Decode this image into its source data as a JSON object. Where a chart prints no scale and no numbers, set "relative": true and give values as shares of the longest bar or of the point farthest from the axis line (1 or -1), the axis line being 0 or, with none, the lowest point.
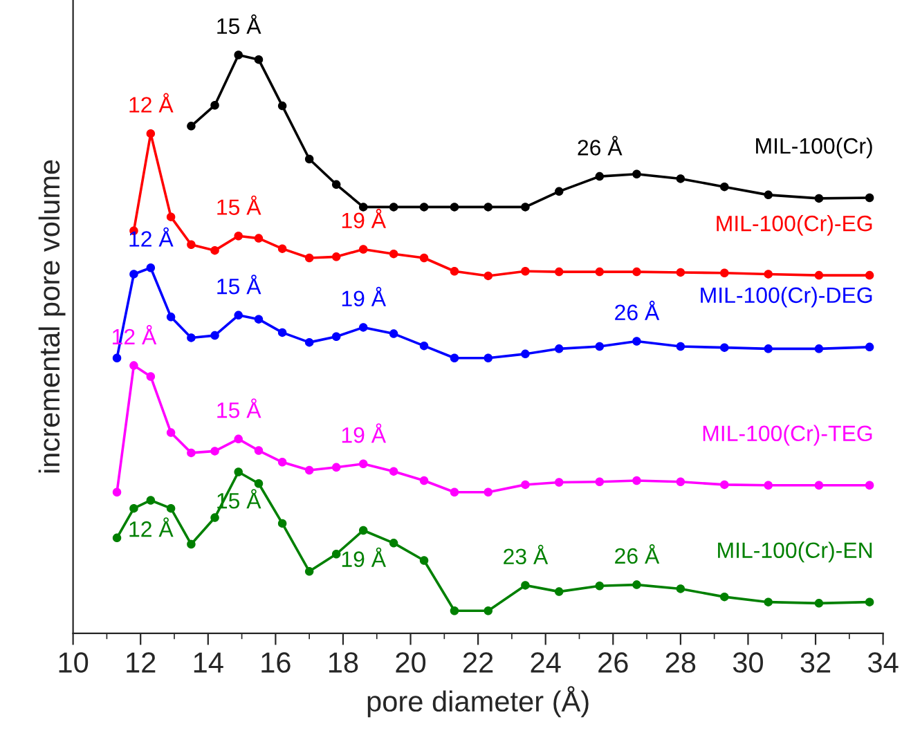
{
  "chart_data": {
    "type": "line",
    "relative": true,
    "xlabel": "pore diameter (Å)",
    "ylabel": "incremental pore volume",
    "xlim": [
      10,
      34
    ],
    "xticks": [
      10,
      12,
      14,
      16,
      18,
      20,
      22,
      24,
      26,
      28,
      30,
      32,
      34
    ],
    "grid": false,
    "legend": false,
    "marker": "circle",
    "line_style": "solid",
    "tick_labels": "x",
    "series": [
      {
        "name": "MIL-100(Cr)",
        "color": "#000000",
        "x": [
          13.5,
          14.2,
          14.9,
          15.5,
          16.2,
          17.0,
          17.8,
          18.6,
          19.5,
          20.4,
          21.3,
          22.3,
          23.4,
          24.4,
          25.6,
          26.7,
          28.0,
          29.3,
          30.6,
          32.1,
          33.6
        ],
        "values": [
          0.877,
          0.913,
          1,
          0.992,
          0.912,
          0.82,
          0.776,
          0.737,
          0.737,
          0.737,
          0.737,
          0.737,
          0.737,
          0.764,
          0.79,
          0.794,
          0.786,
          0.772,
          0.758,
          0.752,
          0.753
        ]
      },
      {
        "name": "MIL-100(Cr)-EG",
        "color": "#ff0000",
        "x": [
          11.8,
          12.3,
          12.9,
          13.5,
          14.2,
          14.9,
          15.5,
          16.2,
          17.0,
          17.8,
          18.6,
          19.5,
          20.4,
          21.3,
          22.3,
          23.4,
          24.4,
          25.6,
          26.7,
          28.0,
          29.3,
          30.6,
          32.1,
          33.6
        ],
        "values": [
          0.696,
          0.864,
          0.72,
          0.672,
          0.662,
          0.687,
          0.683,
          0.665,
          0.649,
          0.651,
          0.664,
          0.656,
          0.649,
          0.626,
          0.618,
          0.626,
          0.625,
          0.625,
          0.625,
          0.624,
          0.623,
          0.621,
          0.619,
          0.619
        ]
      },
      {
        "name": "MIL-100(Cr)-DEG",
        "color": "#0000ff",
        "x": [
          11.3,
          11.8,
          12.3,
          12.9,
          13.5,
          14.2,
          14.9,
          15.5,
          16.2,
          17.0,
          17.8,
          18.6,
          19.5,
          20.4,
          21.3,
          22.3,
          23.4,
          24.4,
          25.6,
          26.7,
          28.0,
          29.3,
          30.6,
          32.1,
          33.6
        ],
        "values": [
          0.476,
          0.621,
          0.632,
          0.547,
          0.511,
          0.515,
          0.55,
          0.543,
          0.52,
          0.503,
          0.513,
          0.529,
          0.518,
          0.497,
          0.476,
          0.476,
          0.483,
          0.492,
          0.496,
          0.505,
          0.496,
          0.494,
          0.492,
          0.492,
          0.495
        ]
      },
      {
        "name": "MIL-100(Cr)-TEG",
        "color": "#ff00ff",
        "x": [
          11.3,
          11.8,
          12.3,
          12.9,
          13.5,
          14.2,
          14.9,
          15.5,
          16.2,
          17.0,
          17.8,
          18.6,
          19.5,
          20.4,
          21.3,
          22.3,
          23.4,
          24.4,
          25.6,
          26.7,
          28.0,
          29.3,
          30.6,
          32.1,
          33.6
        ],
        "values": [
          0.244,
          0.463,
          0.444,
          0.347,
          0.312,
          0.315,
          0.336,
          0.316,
          0.296,
          0.282,
          0.287,
          0.293,
          0.28,
          0.264,
          0.244,
          0.244,
          0.257,
          0.261,
          0.262,
          0.264,
          0.262,
          0.257,
          0.256,
          0.256,
          0.256
        ]
      },
      {
        "name": "MIL-100(Cr)-EN",
        "color": "#008000",
        "x": [
          11.3,
          11.8,
          12.3,
          12.9,
          13.5,
          14.2,
          14.9,
          15.5,
          16.2,
          17.0,
          17.8,
          18.6,
          19.5,
          20.4,
          21.3,
          22.3,
          23.4,
          24.4,
          25.6,
          26.7,
          28.0,
          29.3,
          30.6,
          32.1,
          33.6
        ],
        "values": [
          0.165,
          0.216,
          0.23,
          0.216,
          0.154,
          0.2,
          0.279,
          0.259,
          0.19,
          0.107,
          0.137,
          0.178,
          0.156,
          0.126,
          0.039,
          0.039,
          0.083,
          0.072,
          0.082,
          0.084,
          0.077,
          0.063,
          0.054,
          0.052,
          0.054
        ]
      }
    ],
    "annotations": [
      {
        "text": "15 Å",
        "x": 14.9,
        "y": 1
      },
      {
        "text": "26 Å",
        "x": 25.6,
        "y": 0.79
      },
      {
        "text": "12 Å",
        "x": 12.3,
        "y": 0.864
      },
      {
        "text": "15 Å",
        "x": 14.9,
        "y": 0.687
      },
      {
        "text": "19 Å",
        "x": 18.6,
        "y": 0.664
      },
      {
        "text": "12 Å",
        "x": 12.3,
        "y": 0.632
      },
      {
        "text": "15 Å",
        "x": 14.9,
        "y": 0.55
      },
      {
        "text": "19 Å",
        "x": 18.6,
        "y": 0.529
      },
      {
        "text": "26 Å",
        "x": 26.7,
        "y": 0.505
      },
      {
        "text": "12 Å",
        "x": 11.8,
        "y": 0.463
      },
      {
        "text": "15 Å",
        "x": 14.9,
        "y": 0.336
      },
      {
        "text": "19 Å",
        "x": 18.6,
        "y": 0.293
      },
      {
        "text": "12 Å",
        "x": 12.3,
        "y": 0.23
      },
      {
        "text": "15 Å",
        "x": 14.9,
        "y": 0.279
      },
      {
        "text": "19 Å",
        "x": 18.6,
        "y": 0.178
      },
      {
        "text": "23 Å",
        "x": 23.4,
        "y": 0.083
      },
      {
        "text": "26 Å",
        "x": 26.7,
        "y": 0.084
      }
    ]
  }
}
